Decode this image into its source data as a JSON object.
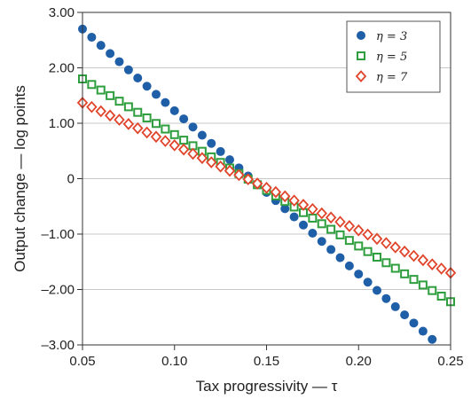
{
  "chart_data": {
    "type": "scatter",
    "title": "",
    "xlabel": "Tax progressivity — τ",
    "ylabel": "Output change — log points",
    "xlim": [
      0.05,
      0.25
    ],
    "ylim": [
      -3.0,
      3.0
    ],
    "xticks": [
      0.05,
      0.1,
      0.15,
      0.2,
      0.25
    ],
    "xtick_labels": [
      "0.05",
      "0.10",
      "0.15",
      "0.20",
      "0.25"
    ],
    "yticks": [
      3.0,
      2.0,
      1.0,
      0.0,
      -1.0,
      -2.0,
      -3.0
    ],
    "ytick_labels": [
      "3.00",
      "2.00",
      "1.00",
      "0",
      "–1.00",
      "–2.00",
      "–3.00"
    ],
    "grid": "horizontal",
    "legend_position": "top-right",
    "series": [
      {
        "name": "η = 3",
        "marker": "filled-circle",
        "color": "#1f5fa8",
        "x_start": 0.05,
        "x_end": 0.24,
        "x_step": 0.005,
        "y_at_start": 2.7,
        "y_at_end": -2.9
      },
      {
        "name": "η = 5",
        "marker": "open-square",
        "color": "#2e9e3e",
        "x_start": 0.05,
        "x_end": 0.25,
        "x_step": 0.005,
        "y_at_start": 1.8,
        "y_at_end": -2.22
      },
      {
        "name": "η = 7",
        "marker": "open-diamond",
        "color": "#e0452b",
        "x_start": 0.05,
        "x_end": 0.25,
        "x_step": 0.005,
        "y_at_start": 1.37,
        "y_at_end": -1.7
      }
    ]
  }
}
